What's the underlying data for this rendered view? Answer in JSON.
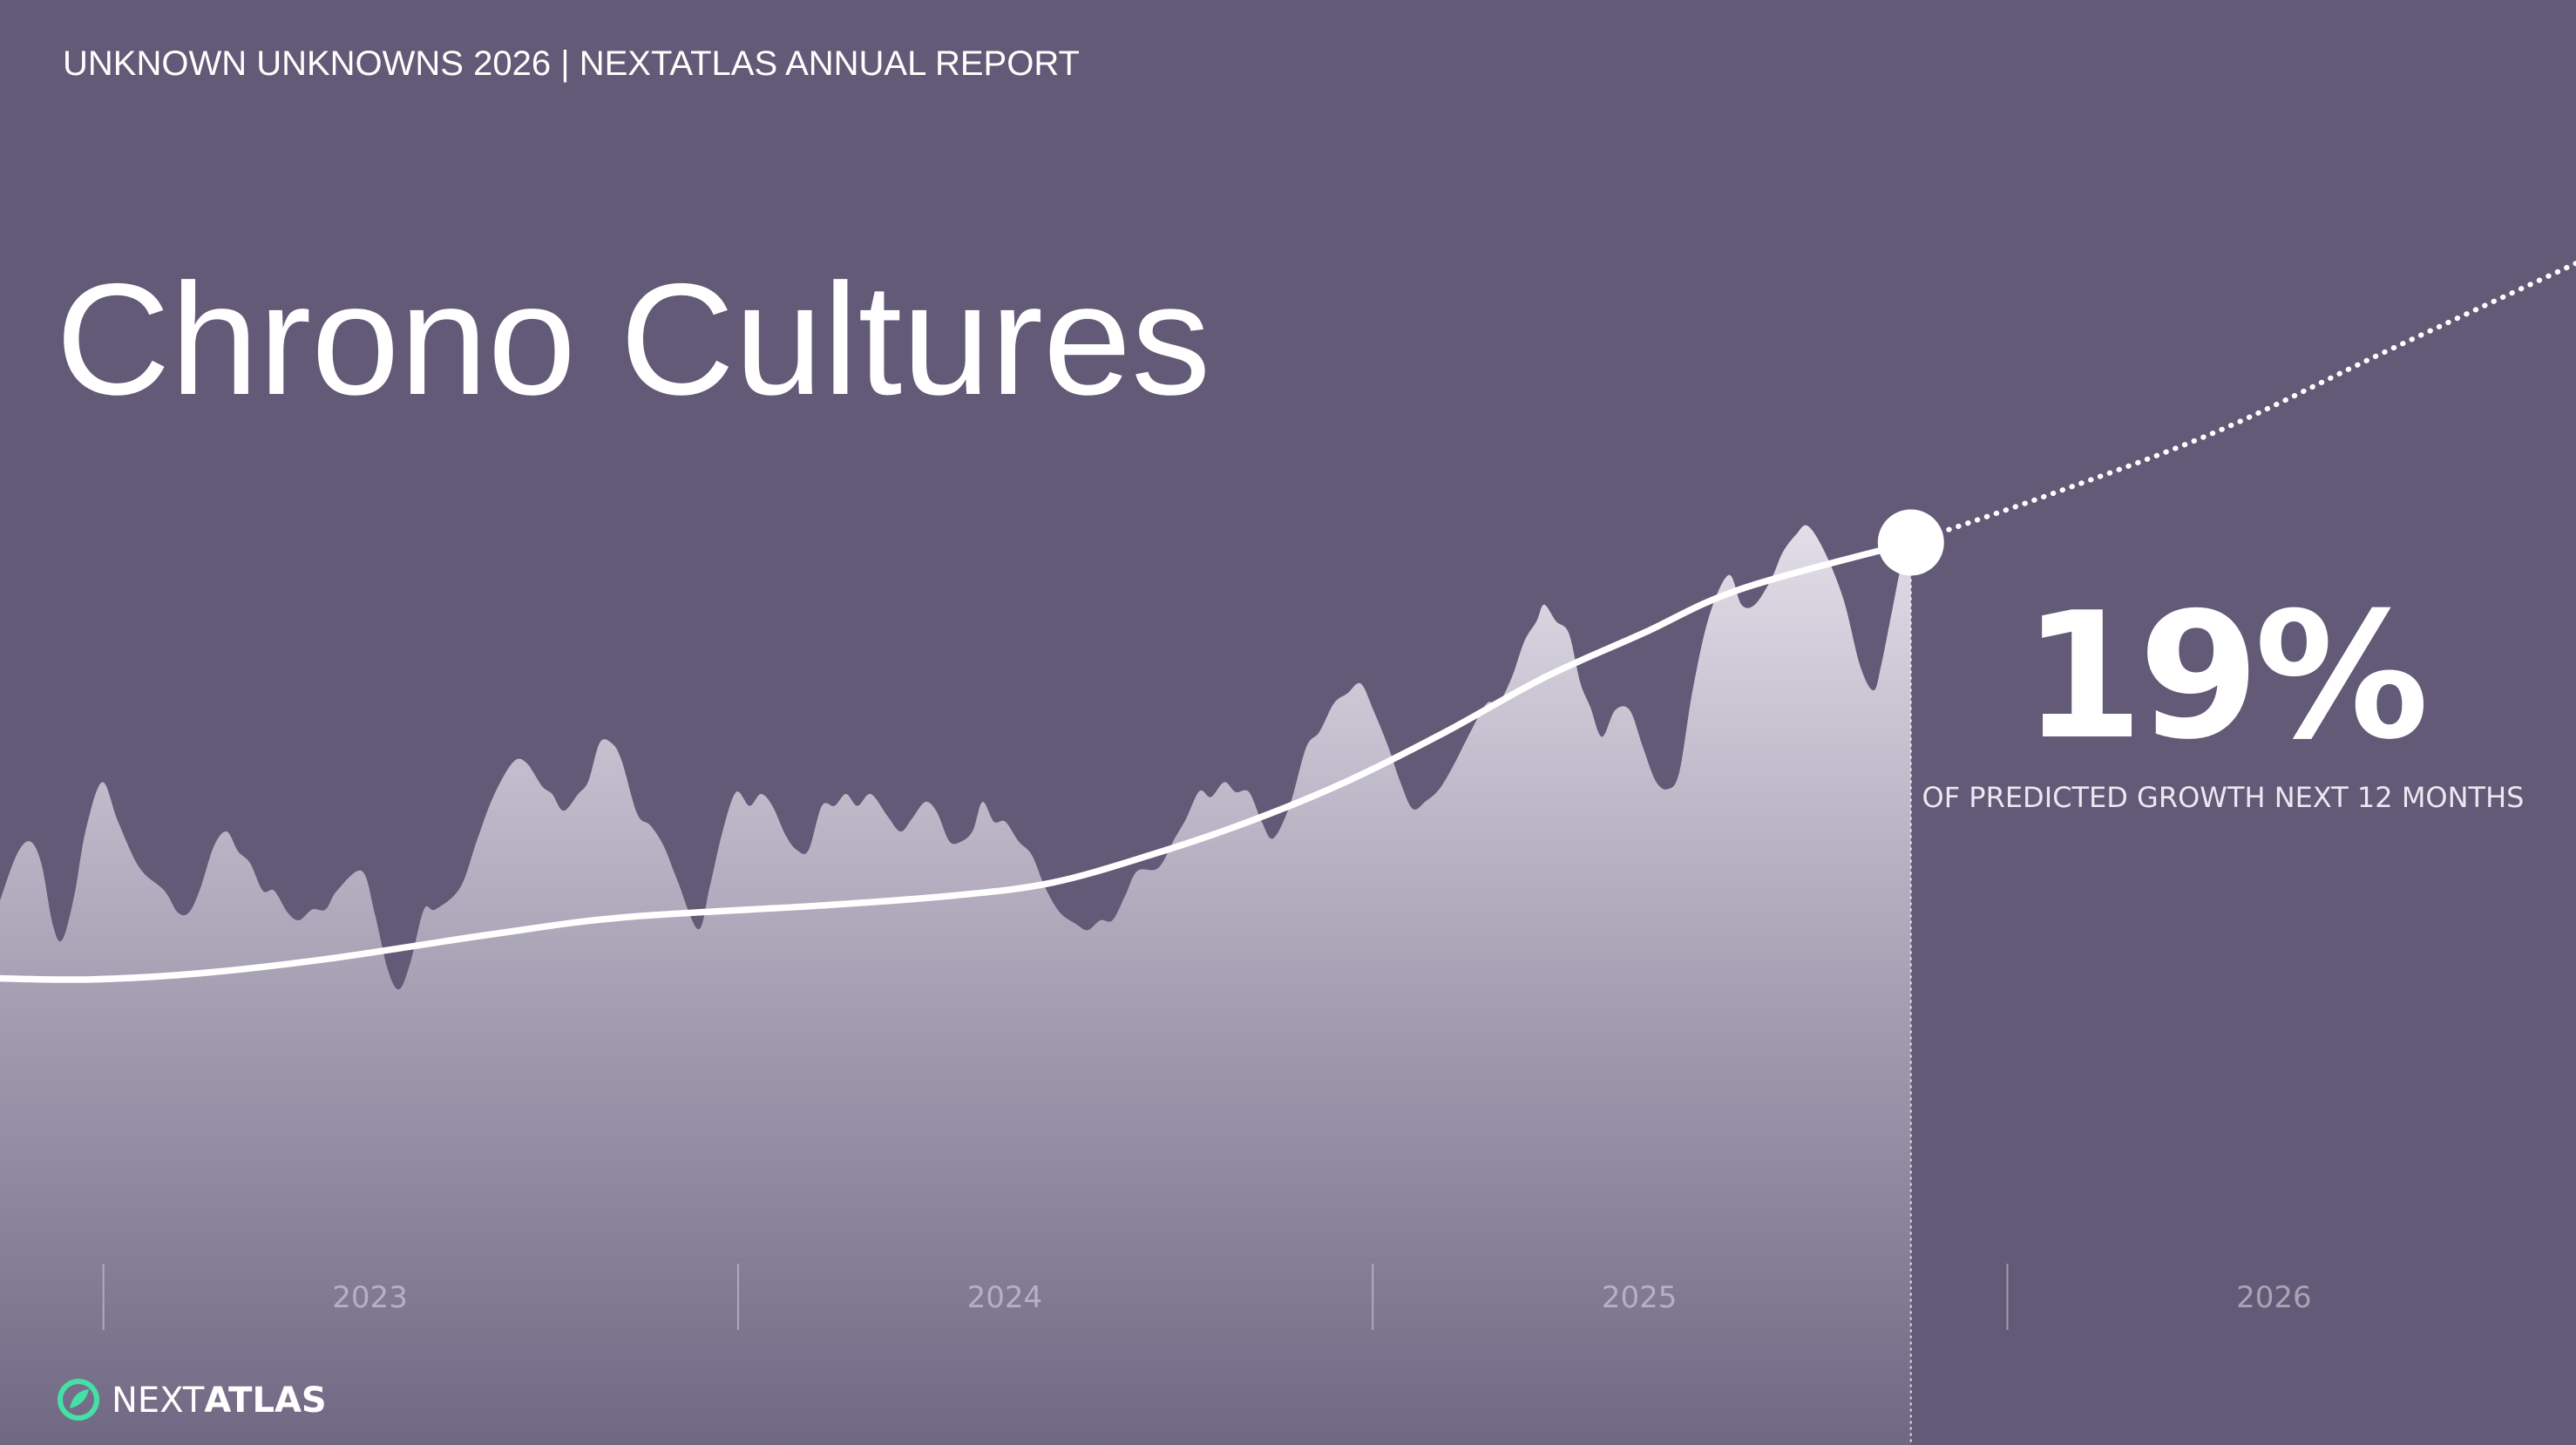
{
  "header": "UNKNOWN UNKNOWNS 2026 | NEXTATLAS ANNUAL REPORT",
  "logo": {
    "parts": [
      "NEXT",
      "ATLAS"
    ]
  },
  "chart_data": {
    "type": "area",
    "title": "Chrono Cultures",
    "annotations": [
      "19%",
      "OF PREDICTED GROWTH NEXT 12 MONTHS"
    ],
    "xlim": [
      2022.837,
      2026.896
    ],
    "xticks": [
      2023,
      2024,
      2025,
      2026
    ],
    "ylim": [
      0,
      146.5
    ],
    "series": [
      {
        "color": "#ffffff",
        "style": "area",
        "x": [
          2022.837,
          2022.863,
          2022.884,
          2022.902,
          2022.92,
          2022.935,
          2022.954,
          2022.972,
          2022.998,
          2023.023,
          2023.057,
          2023.096,
          2023.117,
          2023.135,
          2023.153,
          2023.174,
          2023.194,
          2023.212,
          2023.231,
          2023.251,
          2023.269,
          2023.29,
          2023.308,
          2023.329,
          2023.35,
          2023.368,
          2023.407,
          2023.427,
          2023.448,
          2023.466,
          2023.484,
          2023.505,
          2023.523,
          2023.562,
          2023.588,
          2023.614,
          2023.645,
          2023.666,
          2023.691,
          2023.707,
          2023.725,
          2023.748,
          2023.764,
          2023.782,
          2023.8,
          2023.816,
          2023.841,
          2023.862,
          2023.883,
          2023.904,
          2023.937,
          2023.955,
          2023.976,
          2023.997,
          2024.018,
          2024.036,
          2024.054,
          2024.075,
          2024.093,
          2024.111,
          2024.132,
          2024.152,
          2024.17,
          2024.188,
          2024.209,
          2024.235,
          2024.256,
          2024.274,
          2024.295,
          2024.313,
          2024.333,
          2024.352,
          2024.37,
          2024.385,
          2024.403,
          2024.421,
          2024.442,
          2024.463,
          2024.484,
          2024.507,
          2024.533,
          2024.551,
          2024.571,
          2024.59,
          2024.61,
          2024.629,
          2024.662,
          2024.688,
          2024.706,
          2024.727,
          2024.745,
          2024.766,
          2024.784,
          2024.805,
          2024.825,
          2024.843,
          2024.869,
          2024.895,
          2024.916,
          2024.939,
          2024.96,
          2024.981,
          2025.001,
          2025.025,
          2025.043,
          2025.063,
          2025.084,
          2025.105,
          2025.128,
          2025.154,
          2025.18,
          2025.198,
          2025.219,
          2025.239,
          2025.258,
          2025.27,
          2025.289,
          2025.309,
          2025.327,
          2025.343,
          2025.361,
          2025.382,
          2025.405,
          2025.426,
          2025.446,
          2025.465,
          2025.483,
          2025.504,
          2025.53,
          2025.561,
          2025.581,
          2025.602,
          2025.628,
          2025.646,
          2025.667,
          2025.685,
          2025.711,
          2025.742,
          2025.768,
          2025.789,
          2025.801,
          2025.819,
          2025.835,
          2025.848
        ],
        "values": [
          55.2,
          59.8,
          61.2,
          59.0,
          52.8,
          51.2,
          55.7,
          62.3,
          67.2,
          63.2,
          58.5,
          56.2,
          54.0,
          54.0,
          56.5,
          60.7,
          62.2,
          60.2,
          59.0,
          56.2,
          56.2,
          54.0,
          53.2,
          54.3,
          54.3,
          56.2,
          58.2,
          54.0,
          48.2,
          46.2,
          49.0,
          54.3,
          54.3,
          56.5,
          61.2,
          65.7,
          69.2,
          69.2,
          66.8,
          66.0,
          64.3,
          66.0,
          67.3,
          71.2,
          71.2,
          69.5,
          64.0,
          62.8,
          60.7,
          57.3,
          52.3,
          56.5,
          62.3,
          66.2,
          64.8,
          66.0,
          64.8,
          61.8,
          60.3,
          60.3,
          64.8,
          64.8,
          66.0,
          64.8,
          66.0,
          63.8,
          62.2,
          63.5,
          65.2,
          64.2,
          61.2,
          61.2,
          62.3,
          65.2,
          63.2,
          63.2,
          61.2,
          59.8,
          56.5,
          54.0,
          52.8,
          52.2,
          53.2,
          53.2,
          55.7,
          58.2,
          58.5,
          61.5,
          63.5,
          66.3,
          65.7,
          67.2,
          66.2,
          66.2,
          63.2,
          61.5,
          64.8,
          70.7,
          72.3,
          75.2,
          76.2,
          77.2,
          74.5,
          70.7,
          67.3,
          64.5,
          65.3,
          66.5,
          69.0,
          72.3,
          75.2,
          75.2,
          77.8,
          81.5,
          83.5,
          85.2,
          83.5,
          82.3,
          77.3,
          74.8,
          71.8,
          74.5,
          74.5,
          70.7,
          67.3,
          66.5,
          68.2,
          76.5,
          84.0,
          88.2,
          85.2,
          85.2,
          87.8,
          90.5,
          92.3,
          93.2,
          90.7,
          85.7,
          79.0,
          76.5,
          79.0,
          84.8,
          89.8,
          91.5
        ]
      },
      {
        "color": "#ffffff",
        "style": "solid",
        "x": [
          2022.837,
          2022.979,
          2023.148,
          2023.355,
          2023.614,
          2023.821,
          2024.132,
          2024.339,
          2024.494,
          2024.649,
          2024.805,
          2024.96,
          2025.115,
          2025.27,
          2025.426,
          2025.581,
          2025.848
        ],
        "values": [
          47.3,
          47.2,
          47.8,
          49.3,
          51.8,
          53.5,
          54.7,
          55.7,
          57.0,
          59.8,
          63.2,
          67.3,
          72.3,
          77.8,
          82.3,
          86.8,
          91.5
        ]
      },
      {
        "color": "#ffffff",
        "style": "dotted",
        "x": [
          2025.848,
          2026.073,
          2026.332,
          2026.591,
          2026.896
        ],
        "values": [
          91.5,
          96.5,
          102.8,
          110.7,
          119.8
        ]
      }
    ]
  }
}
